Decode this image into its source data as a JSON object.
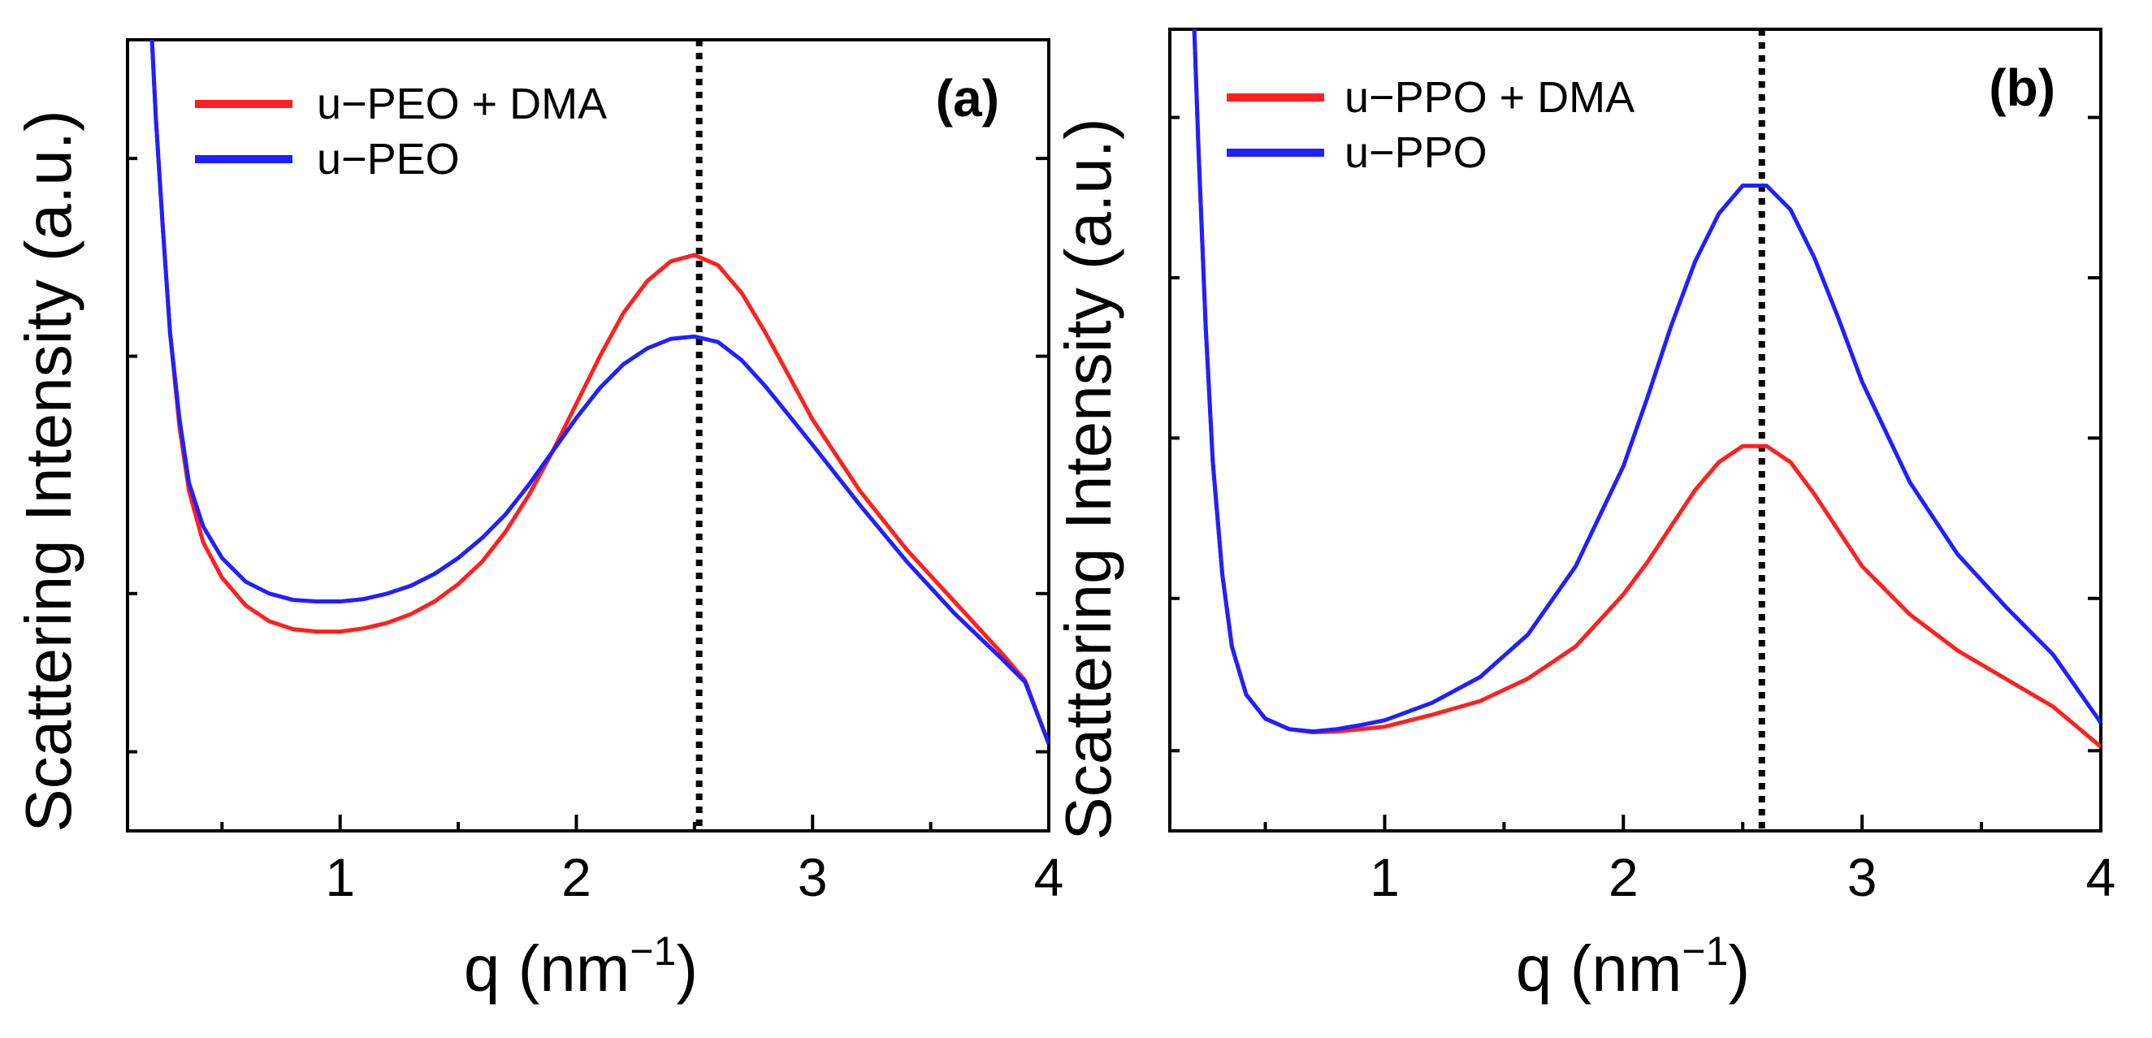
{
  "figure": {
    "axis_label_left": "Scattering Intensity (a.u.)",
    "axis_label_bottom_base": "q (nm",
    "axis_label_bottom_exp": "−1",
    "axis_label_bottom_close": ")"
  },
  "chart_data": [
    {
      "type": "line",
      "panel_label": "(a)",
      "xlabel": "q (nm−1)",
      "ylabel": "Scattering Intensity (a.u.)",
      "xlim": [
        0.1,
        4.0
      ],
      "ylim": [
        0,
        10
      ],
      "x_ticks": [
        1,
        2,
        3,
        4
      ],
      "x_tick_labels": [
        "1",
        "2",
        "3",
        "4"
      ],
      "x_minor_ticks": [
        0.5,
        1.5,
        2.5,
        3.5
      ],
      "y_ticks": [
        1,
        3,
        6,
        8.5
      ],
      "y_tick_labels": [],
      "reference_line": {
        "x": 2.52,
        "style": "dotted",
        "color": "#000000"
      },
      "legend_position": "top-left",
      "series": [
        {
          "name": "u−PEO + DMA",
          "color": "#ff2020",
          "x": [
            0.2,
            0.22,
            0.25,
            0.28,
            0.32,
            0.36,
            0.42,
            0.5,
            0.6,
            0.7,
            0.8,
            0.9,
            1.0,
            1.1,
            1.2,
            1.3,
            1.4,
            1.5,
            1.6,
            1.7,
            1.8,
            1.9,
            2.0,
            2.1,
            2.2,
            2.3,
            2.4,
            2.5,
            2.6,
            2.7,
            2.8,
            2.9,
            3.0,
            3.2,
            3.4,
            3.6,
            3.8,
            3.9,
            4.0
          ],
          "y": [
            10.2,
            9.0,
            7.6,
            6.3,
            5.1,
            4.3,
            3.65,
            3.2,
            2.85,
            2.65,
            2.55,
            2.52,
            2.52,
            2.56,
            2.63,
            2.74,
            2.9,
            3.12,
            3.4,
            3.78,
            4.25,
            4.8,
            5.4,
            6.0,
            6.55,
            6.95,
            7.2,
            7.28,
            7.15,
            6.8,
            6.3,
            5.75,
            5.2,
            4.3,
            3.55,
            2.9,
            2.25,
            1.9,
            1.1
          ]
        },
        {
          "name": "u−PEO",
          "color": "#2020ff",
          "x": [
            0.2,
            0.22,
            0.25,
            0.28,
            0.32,
            0.36,
            0.42,
            0.5,
            0.6,
            0.7,
            0.8,
            0.9,
            1.0,
            1.1,
            1.2,
            1.3,
            1.4,
            1.5,
            1.6,
            1.7,
            1.8,
            1.9,
            2.0,
            2.1,
            2.2,
            2.3,
            2.4,
            2.5,
            2.6,
            2.7,
            2.8,
            2.9,
            3.0,
            3.2,
            3.4,
            3.6,
            3.8,
            3.9,
            4.0
          ],
          "y": [
            10.2,
            9.0,
            7.6,
            6.3,
            5.2,
            4.4,
            3.85,
            3.45,
            3.15,
            3.0,
            2.92,
            2.9,
            2.9,
            2.93,
            3.0,
            3.1,
            3.25,
            3.45,
            3.7,
            4.0,
            4.38,
            4.8,
            5.22,
            5.6,
            5.9,
            6.1,
            6.22,
            6.25,
            6.18,
            5.95,
            5.62,
            5.25,
            4.88,
            4.12,
            3.4,
            2.75,
            2.18,
            1.88,
            1.1
          ]
        }
      ]
    },
    {
      "type": "line",
      "panel_label": "(b)",
      "xlabel": "q (nm−1)",
      "ylabel": "Scattering Intensity (a.u.)",
      "xlim": [
        0.1,
        4.0
      ],
      "ylim": [
        0,
        10
      ],
      "x_ticks": [
        1,
        2,
        3,
        4
      ],
      "x_tick_labels": [
        "1",
        "2",
        "3",
        "4"
      ],
      "x_minor_ticks": [
        0.5,
        1.5,
        2.5,
        3.5
      ],
      "y_ticks": [
        1,
        2.9,
        4.9,
        6.9,
        8.9
      ],
      "y_tick_labels": [],
      "reference_line": {
        "x": 2.58,
        "style": "dotted",
        "color": "#000000"
      },
      "legend_position": "top-left",
      "series": [
        {
          "name": "u−PPO + DMA",
          "color": "#ff2020",
          "x": [
            0.2,
            0.22,
            0.25,
            0.28,
            0.32,
            0.36,
            0.42,
            0.5,
            0.6,
            0.7,
            0.8,
            0.9,
            1.0,
            1.2,
            1.4,
            1.6,
            1.8,
            2.0,
            2.1,
            2.2,
            2.3,
            2.4,
            2.5,
            2.6,
            2.7,
            2.8,
            2.9,
            3.0,
            3.2,
            3.4,
            3.6,
            3.8,
            4.0
          ],
          "y": [
            10.2,
            8.5,
            6.3,
            4.6,
            3.2,
            2.3,
            1.7,
            1.4,
            1.27,
            1.23,
            1.24,
            1.27,
            1.3,
            1.45,
            1.62,
            1.9,
            2.3,
            2.95,
            3.35,
            3.8,
            4.25,
            4.6,
            4.8,
            4.8,
            4.6,
            4.2,
            3.75,
            3.3,
            2.7,
            2.25,
            1.9,
            1.55,
            1.05
          ]
        },
        {
          "name": "u−PPO",
          "color": "#2020ff",
          "x": [
            0.2,
            0.22,
            0.25,
            0.28,
            0.32,
            0.36,
            0.42,
            0.5,
            0.6,
            0.7,
            0.8,
            0.9,
            1.0,
            1.2,
            1.4,
            1.6,
            1.8,
            2.0,
            2.1,
            2.2,
            2.3,
            2.4,
            2.5,
            2.6,
            2.7,
            2.8,
            2.9,
            3.0,
            3.2,
            3.4,
            3.6,
            3.8,
            4.0
          ],
          "y": [
            10.2,
            8.5,
            6.3,
            4.6,
            3.2,
            2.3,
            1.7,
            1.4,
            1.27,
            1.24,
            1.27,
            1.32,
            1.38,
            1.6,
            1.92,
            2.45,
            3.3,
            4.55,
            5.4,
            6.3,
            7.1,
            7.7,
            8.05,
            8.05,
            7.75,
            7.15,
            6.4,
            5.6,
            4.35,
            3.45,
            2.8,
            2.2,
            1.35
          ]
        }
      ]
    }
  ]
}
